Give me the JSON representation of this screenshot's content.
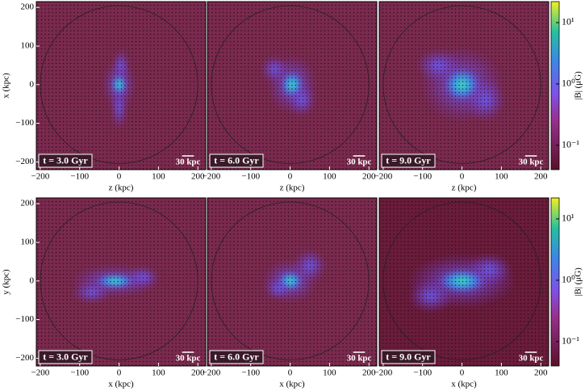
{
  "chart_data": [
    {
      "type": "image",
      "title": "t = 3.0 Gyr",
      "scale_bar": {
        "value": 30,
        "label": "30 kpc"
      },
      "xlabel": "z (kpc)",
      "ylabel": "x (kpc)",
      "xlim": [
        -210,
        220
      ],
      "ylim": [
        -220,
        215
      ],
      "xticks": [
        {
          "value": -200,
          "label": "−200"
        },
        {
          "value": -100,
          "label": "−100"
        },
        0,
        100,
        200
      ],
      "yticks": [
        {
          "value": -200,
          "label": "−200"
        },
        {
          "value": -100,
          "label": "−100"
        },
        0,
        100,
        200
      ]
    },
    {
      "type": "image",
      "title": "t = 6.0 Gyr",
      "scale_bar": {
        "value": 30,
        "label": "30 kpc"
      },
      "xlabel": "z (kpc)",
      "xlim": [
        -210,
        220
      ],
      "ylim": [
        -220,
        215
      ],
      "xticks": [
        {
          "value": -200,
          "label": "−200"
        },
        {
          "value": -100,
          "label": "−100"
        },
        0,
        100,
        200
      ]
    },
    {
      "type": "image",
      "title": "t = 9.0 Gyr",
      "scale_bar": {
        "value": 30,
        "label": "30 kpc"
      },
      "xlabel": "z (kpc)",
      "xlim": [
        -210,
        220
      ],
      "ylim": [
        -220,
        215
      ],
      "xticks": [
        {
          "value": -200,
          "label": "−200"
        },
        {
          "value": -100,
          "label": "−100"
        },
        0,
        100,
        200
      ]
    },
    {
      "type": "image",
      "title": "t = 3.0 Gyr",
      "scale_bar": {
        "value": 30,
        "label": "30 kpc"
      },
      "xlabel": "x (kpc)",
      "ylabel": "y (kpc)",
      "xlim": [
        -210,
        220
      ],
      "ylim": [
        -220,
        215
      ],
      "xticks": [
        {
          "value": -200,
          "label": "−200"
        },
        {
          "value": -100,
          "label": "−100"
        },
        0,
        100,
        200
      ],
      "yticks": [
        {
          "value": -200,
          "label": "−200"
        },
        {
          "value": -100,
          "label": "−100"
        },
        0,
        100,
        200
      ]
    },
    {
      "type": "image",
      "title": "t = 6.0 Gyr",
      "scale_bar": {
        "value": 30,
        "label": "30 kpc"
      },
      "xlabel": "x (kpc)",
      "xlim": [
        -210,
        220
      ],
      "ylim": [
        -220,
        215
      ],
      "xticks": [
        {
          "value": -200,
          "label": "−200"
        },
        {
          "value": -100,
          "label": "−100"
        },
        0,
        100,
        200
      ]
    },
    {
      "type": "image",
      "title": "t = 9.0 Gyr",
      "scale_bar": {
        "value": 30,
        "label": "30 kpc"
      },
      "xlabel": "x (kpc)",
      "xlim": [
        -210,
        220
      ],
      "ylim": [
        -220,
        215
      ],
      "xticks": [
        {
          "value": -200,
          "label": "−200"
        },
        {
          "value": -100,
          "label": "−100"
        },
        0,
        100,
        200
      ]
    },
    {
      "type": "colorbar",
      "label": "|B| (μG)",
      "log_scale": true,
      "zlim": [
        0.04,
        22
      ],
      "zticks": [
        {
          "value": 0.1,
          "label": "10⁻¹"
        },
        {
          "value": 1,
          "label": "10⁰"
        },
        {
          "value": 10,
          "label": "10¹"
        }
      ]
    },
    {
      "type": "colorbar",
      "label": "|B| (μG)",
      "log_scale": true,
      "zlim": [
        0.04,
        22
      ],
      "zticks": [
        {
          "value": 0.1,
          "label": "10⁻¹"
        },
        {
          "value": 1,
          "label": "10⁰"
        },
        {
          "value": 10,
          "label": "10¹"
        }
      ]
    }
  ]
}
